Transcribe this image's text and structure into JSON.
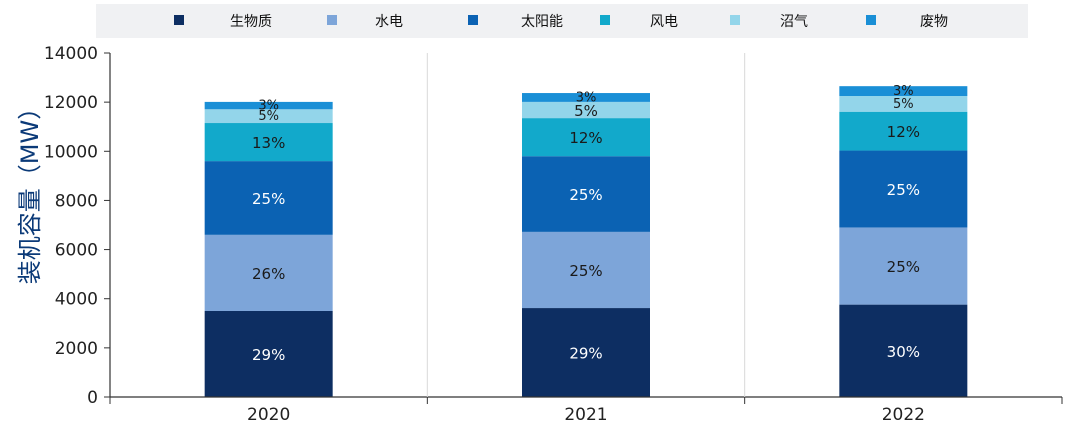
{
  "chart_data": {
    "type": "bar",
    "stacked": true,
    "title": "",
    "xlabel": "",
    "ylabel": "装机容量（MW）",
    "ylim": [
      0,
      14000
    ],
    "yticks": [
      0,
      2000,
      4000,
      6000,
      8000,
      10000,
      12000,
      14000
    ],
    "categories": [
      "2020",
      "2021",
      "2022"
    ],
    "grid": false,
    "legend_position": "top",
    "series": [
      {
        "name": "生物质",
        "color": "#0d2e62",
        "values": [
          3500,
          3620,
          3760
        ],
        "labels": [
          "29%",
          "29%",
          "30%"
        ]
      },
      {
        "name": "水电",
        "color": "#7da5d9",
        "values": [
          3100,
          3100,
          3140
        ],
        "labels": [
          "26%",
          "25%",
          "25%"
        ]
      },
      {
        "name": "太阳能",
        "color": "#0b62b3",
        "values": [
          3000,
          3080,
          3130
        ],
        "labels": [
          "25%",
          "25%",
          "25%"
        ]
      },
      {
        "name": "风电",
        "color": "#12a9cb",
        "values": [
          1550,
          1550,
          1580
        ],
        "labels": [
          "13%",
          "12%",
          "12%"
        ]
      },
      {
        "name": "沼气",
        "color": "#93d5ea",
        "values": [
          560,
          660,
          640
        ],
        "labels": [
          "5%",
          "5%",
          "5%"
        ]
      },
      {
        "name": "废物",
        "color": "#1a8fd6",
        "values": [
          300,
          360,
          400
        ],
        "labels": [
          "3%",
          "3%",
          "3%"
        ]
      }
    ]
  }
}
